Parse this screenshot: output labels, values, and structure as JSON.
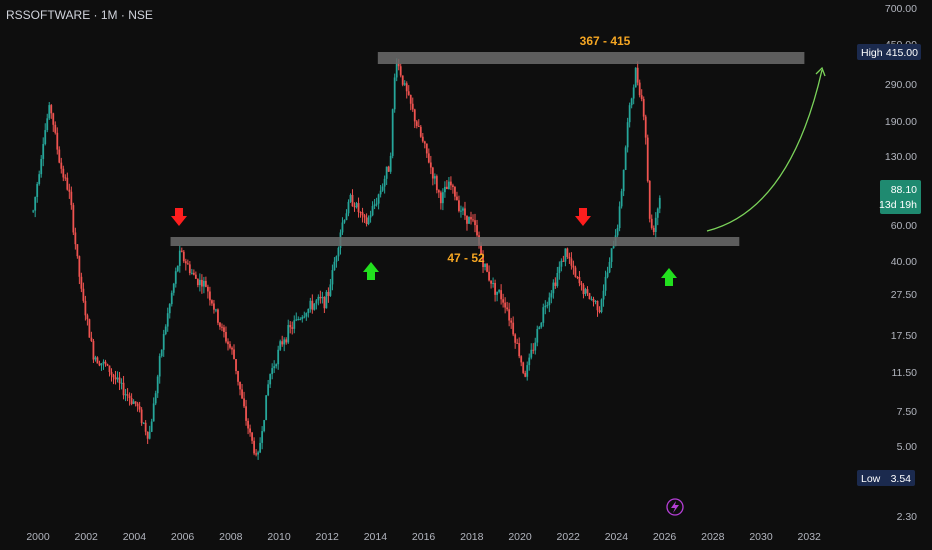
{
  "symbol_header": "RSSOFTWARE · 1M · NSE",
  "colors": {
    "background": "#0e0e0e",
    "up": "#26a69a",
    "down": "#ef5350",
    "zone": "#6b6b6b",
    "zone_label": "#f5a623",
    "arrow_down": "#ff1e1e",
    "arrow_up": "#22e01e",
    "projection": "#7bd35a",
    "high_low_badge": "#1b2a4e",
    "price_badge": "#1f8a70",
    "lightning": "#b53fd6"
  },
  "chart_data": {
    "type": "candlestick",
    "scale": "log",
    "x_ticks": [
      "2000",
      "2002",
      "2004",
      "2006",
      "2008",
      "2010",
      "2012",
      "2014",
      "2016",
      "2018",
      "2020",
      "2022",
      "2024",
      "2026",
      "2028",
      "2030",
      "2032"
    ],
    "y_ticks": [
      "700.00",
      "450.00",
      "290.00",
      "190.00",
      "130.00",
      "60.00",
      "40.00",
      "27.50",
      "17.50",
      "11.50",
      "7.50",
      "5.00",
      "2.30"
    ],
    "series_keypoints": [
      {
        "date": "1999.8",
        "price": 70
      },
      {
        "date": "2000.2",
        "price": 150
      },
      {
        "date": "2000.5",
        "price": 230
      },
      {
        "date": "2000.9",
        "price": 120
      },
      {
        "date": "2001.3",
        "price": 85
      },
      {
        "date": "2001.8",
        "price": 28
      },
      {
        "date": "2002.3",
        "price": 14
      },
      {
        "date": "2002.9",
        "price": 12
      },
      {
        "date": "2003.5",
        "price": 9.5
      },
      {
        "date": "2004.1",
        "price": 8
      },
      {
        "date": "2004.6",
        "price": 5.5
      },
      {
        "date": "2005.2",
        "price": 17
      },
      {
        "date": "2005.9",
        "price": 44
      },
      {
        "date": "2006.5",
        "price": 33
      },
      {
        "date": "2007.0",
        "price": 30
      },
      {
        "date": "2007.5",
        "price": 20
      },
      {
        "date": "2008.1",
        "price": 14
      },
      {
        "date": "2008.6",
        "price": 7
      },
      {
        "date": "2009.1",
        "price": 4.2
      },
      {
        "date": "2009.6",
        "price": 11
      },
      {
        "date": "2010.2",
        "price": 17
      },
      {
        "date": "2010.8",
        "price": 21
      },
      {
        "date": "2011.5",
        "price": 25
      },
      {
        "date": "2012.0",
        "price": 26
      },
      {
        "date": "2012.6",
        "price": 60
      },
      {
        "date": "2013.0",
        "price": 82
      },
      {
        "date": "2013.6",
        "price": 60
      },
      {
        "date": "2014.1",
        "price": 82
      },
      {
        "date": "2014.6",
        "price": 120
      },
      {
        "date": "2014.85",
        "price": 390
      },
      {
        "date": "2015.3",
        "price": 260
      },
      {
        "date": "2015.8",
        "price": 170
      },
      {
        "date": "2016.2",
        "price": 125
      },
      {
        "date": "2016.7",
        "price": 80
      },
      {
        "date": "2017.1",
        "price": 95
      },
      {
        "date": "2017.6",
        "price": 70
      },
      {
        "date": "2018.1",
        "price": 60
      },
      {
        "date": "2018.5",
        "price": 38
      },
      {
        "date": "2018.9",
        "price": 30
      },
      {
        "date": "2019.4",
        "price": 25
      },
      {
        "date": "2019.8",
        "price": 17
      },
      {
        "date": "2020.2",
        "price": 11
      },
      {
        "date": "2020.6",
        "price": 16
      },
      {
        "date": "2021.0",
        "price": 24
      },
      {
        "date": "2021.4",
        "price": 31
      },
      {
        "date": "2021.9",
        "price": 45
      },
      {
        "date": "2022.3",
        "price": 33
      },
      {
        "date": "2022.8",
        "price": 27
      },
      {
        "date": "2023.3",
        "price": 24
      },
      {
        "date": "2023.7",
        "price": 38
      },
      {
        "date": "2024.1",
        "price": 65
      },
      {
        "date": "2024.5",
        "price": 200
      },
      {
        "date": "2024.8",
        "price": 330
      },
      {
        "date": "2025.0",
        "price": 270
      },
      {
        "date": "2025.2",
        "price": 180
      },
      {
        "date": "2025.35",
        "price": 70
      },
      {
        "date": "2025.5",
        "price": 55
      },
      {
        "date": "2025.7",
        "price": 72
      },
      {
        "date": "2025.85",
        "price": 88.1
      }
    ],
    "zones": [
      {
        "label": "367 - 415",
        "low": 367,
        "high": 415,
        "from": "2014.1",
        "to": "2031.8"
      },
      {
        "label": "47 - 52",
        "low": 47,
        "high": 52,
        "from": "2005.5",
        "to": "2029.1"
      }
    ],
    "markers": [
      {
        "type": "arrow-down",
        "date": "2005.8",
        "price": 70
      },
      {
        "type": "arrow-down",
        "date": "2021.95",
        "price": 70
      },
      {
        "type": "arrow-up",
        "date": "2013.4",
        "price": 36
      },
      {
        "type": "arrow-up",
        "date": "2025.4",
        "price": 35
      }
    ],
    "projection": {
      "from_date": "2026.2",
      "from_price": 57,
      "to_date": "2031.7",
      "to_price": 355
    },
    "high": {
      "label": "High",
      "value": "415.00",
      "price": 415
    },
    "low": {
      "label": "Low",
      "value": "3.54",
      "price": 3.54
    },
    "last": {
      "value": "88.10",
      "countdown": "13d 19h",
      "price": 88.1
    }
  }
}
